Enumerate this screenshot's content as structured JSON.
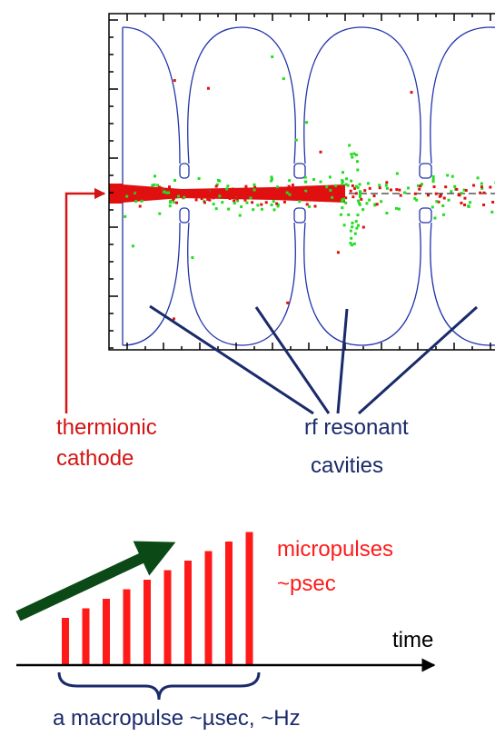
{
  "labels": {
    "cathode": [
      "thermionic",
      "cathode"
    ],
    "cavities": [
      "rf resonant",
      "cavities"
    ],
    "micropulses": [
      "micropulses",
      "~psec"
    ],
    "time": "time",
    "macropulse": "a macropulse ~µsec, ~Hz"
  }
}
